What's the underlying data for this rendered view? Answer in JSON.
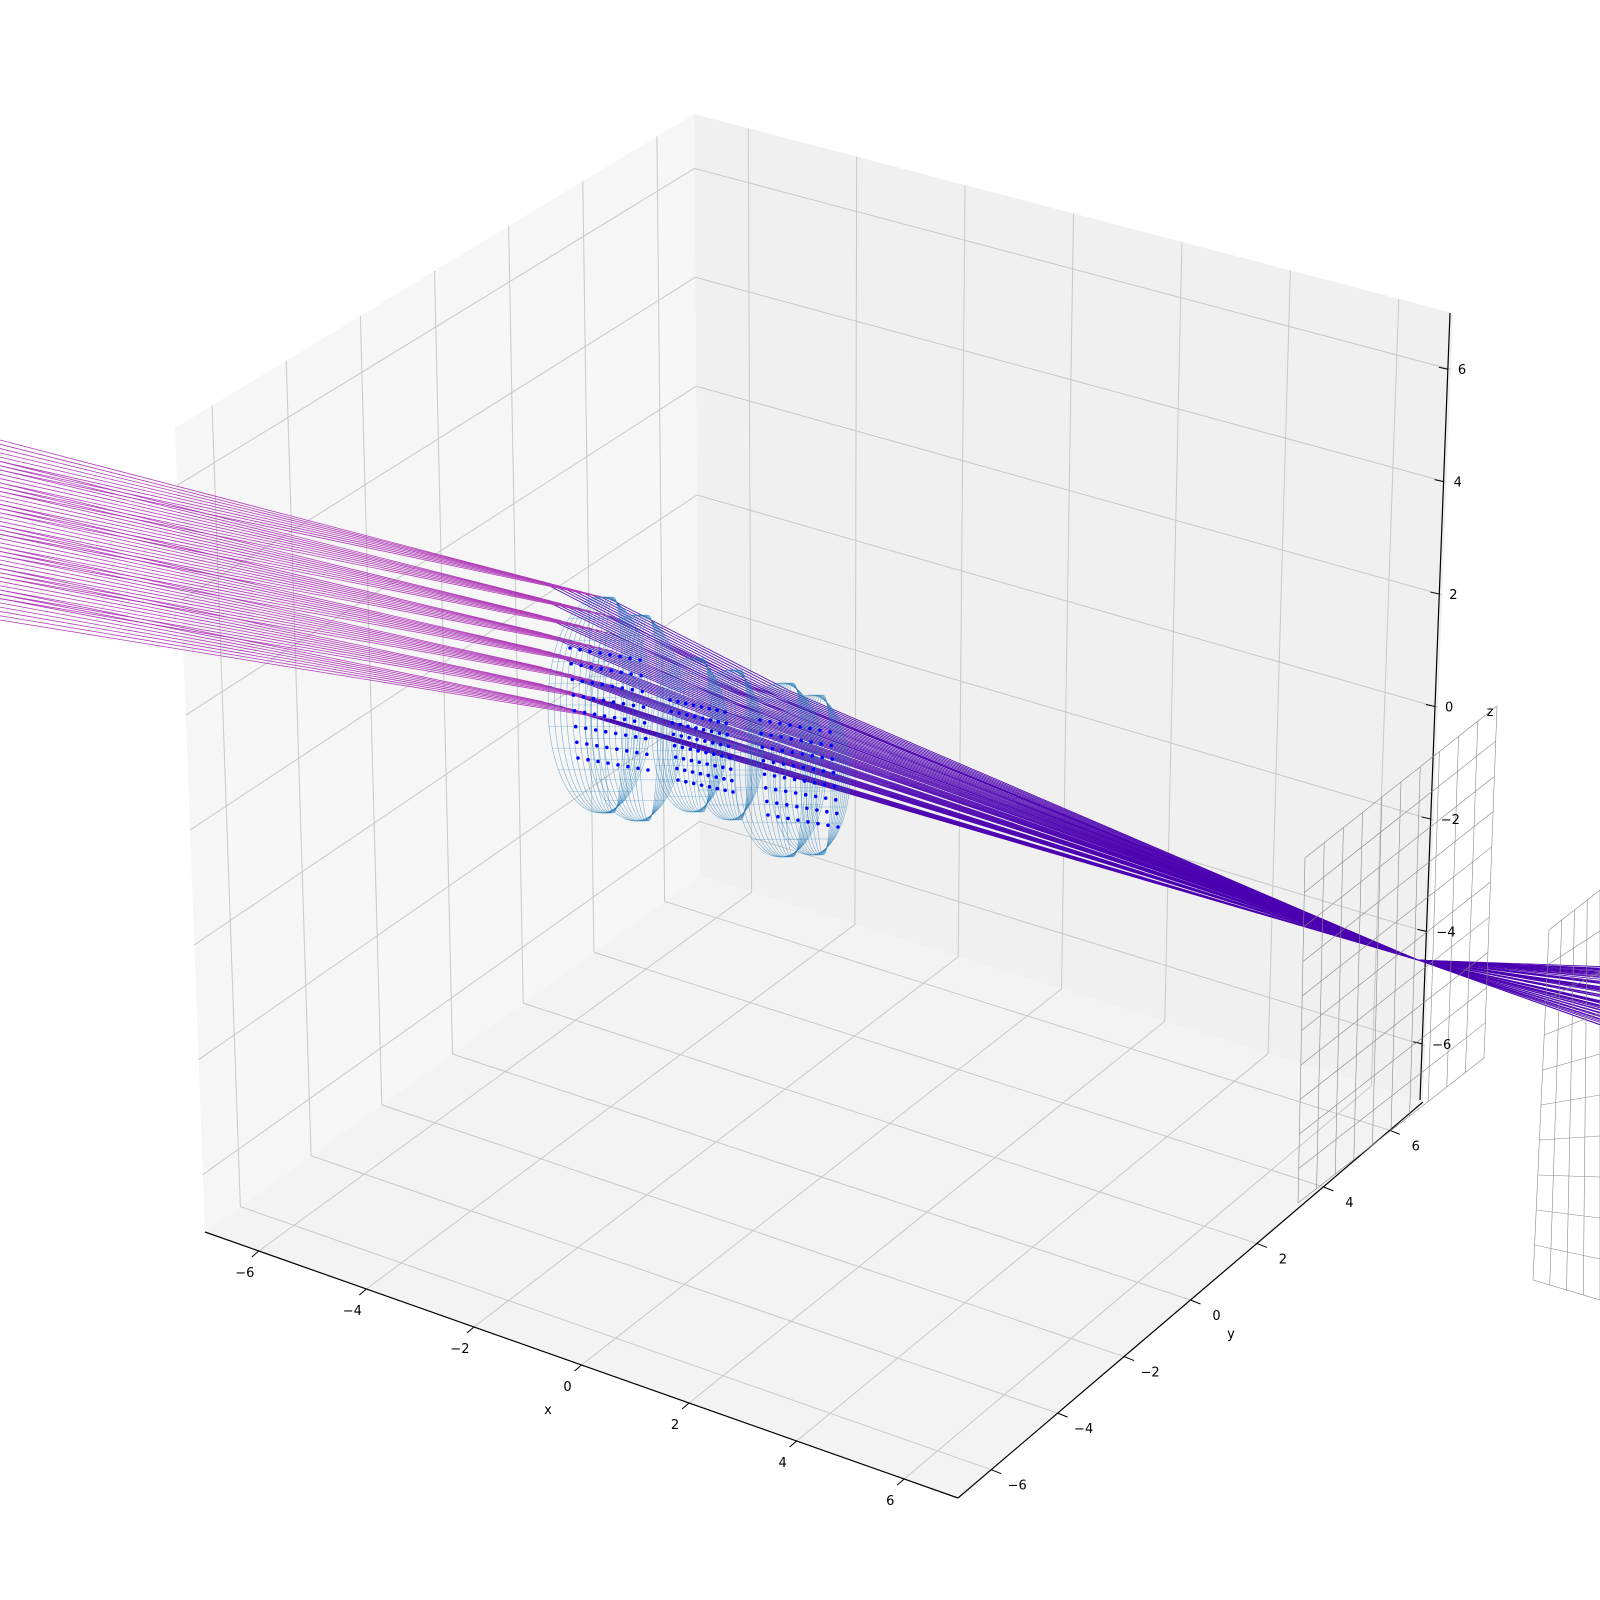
{
  "chart_data": {
    "type": "3d-line",
    "title": "",
    "xlabel": "x",
    "ylabel": "y",
    "zlabel": "z",
    "xlim": [
      -7,
      7
    ],
    "ylim": [
      -7,
      7
    ],
    "zlim": [
      -7,
      7
    ],
    "ticks": {
      "x": [
        -6,
        -4,
        -2,
        0,
        2,
        4,
        6
      ],
      "y": [
        -6,
        -4,
        -2,
        0,
        2,
        4,
        6
      ],
      "z": [
        -6,
        -4,
        -2,
        0,
        2,
        4,
        6
      ]
    },
    "tick_labels": {
      "x": [
        "−6",
        "−4",
        "−2",
        "0",
        "2",
        "4",
        "6"
      ],
      "y": [
        "−6",
        "−4",
        "−2",
        "0",
        "2",
        "4",
        "6"
      ],
      "z": [
        "−6",
        "−4",
        "−2",
        "0",
        "2",
        "4",
        "6"
      ]
    },
    "grid": true,
    "legend": "none",
    "elements": [
      {
        "kind": "ray_bundle",
        "ray_count": 64,
        "color_start": "#b03ab8",
        "color_end": "#4b00b0"
      },
      {
        "kind": "lens_surfaces",
        "count": 6,
        "color": "#1f77b4",
        "style": "wireframe"
      },
      {
        "kind": "intersection_points",
        "color": "#0000ff"
      },
      {
        "kind": "image_planes",
        "count": 2,
        "color": "#888888",
        "style": "grid"
      }
    ],
    "colors": {
      "pane": "#f2f2f2",
      "grid": "#c8c8c8",
      "lens": "#1f77b4",
      "ray_in": "#b03ab8",
      "ray_out": "#4b00b0",
      "points": "#0000ff",
      "screen": "#888888"
    }
  }
}
